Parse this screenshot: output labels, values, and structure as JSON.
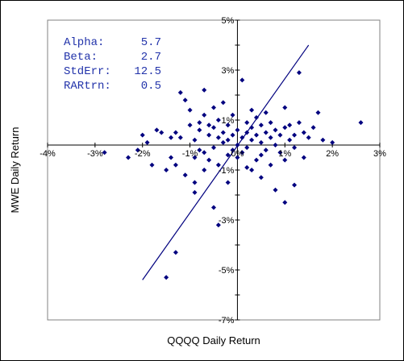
{
  "chart_data": {
    "type": "scatter",
    "xlabel": "QQQQ Daily Return",
    "ylabel": "MWE Daily Return",
    "xlim": [
      -4,
      3
    ],
    "ylim": [
      -7,
      5
    ],
    "x_ticks": [
      "-4%",
      "-3%",
      "-2%",
      "-1%",
      "0%",
      "1%",
      "2%",
      "3%"
    ],
    "y_ticks": [
      "5%",
      "3%",
      "1%",
      "-1%",
      "-3%",
      "-5%",
      "-7%"
    ],
    "colors": {
      "points": "#00007f",
      "line": "#00007f",
      "stats_text": "#2233aa"
    },
    "stats": [
      {
        "label": "Alpha:",
        "value": "5.7"
      },
      {
        "label": "Beta:",
        "value": "2.7"
      },
      {
        "label": "StdErr:",
        "value": "12.5"
      },
      {
        "label": "RARtrn:",
        "value": "0.5"
      }
    ],
    "regression_line": {
      "x": [
        -2.0,
        1.5
      ],
      "y": [
        -5.4,
        4.0
      ]
    },
    "points": [
      [
        -2.8,
        -0.3
      ],
      [
        -2.3,
        -0.5
      ],
      [
        -2.1,
        -0.2
      ],
      [
        -2.0,
        0.4
      ],
      [
        -1.9,
        0.1
      ],
      [
        -1.8,
        -0.8
      ],
      [
        -1.7,
        0.6
      ],
      [
        -1.6,
        0.5
      ],
      [
        -1.5,
        -1.0
      ],
      [
        -1.4,
        0.3
      ],
      [
        -1.4,
        -0.5
      ],
      [
        -1.3,
        -0.8
      ],
      [
        -1.3,
        0.5
      ],
      [
        -1.2,
        0.3
      ],
      [
        -1.2,
        2.1
      ],
      [
        -1.1,
        1.8
      ],
      [
        -1.1,
        -1.2
      ],
      [
        -1.0,
        1.4
      ],
      [
        -1.0,
        0.8
      ],
      [
        -0.9,
        0.2
      ],
      [
        -0.9,
        -0.5
      ],
      [
        -0.9,
        -1.5
      ],
      [
        -0.8,
        0.9
      ],
      [
        -0.8,
        0.6
      ],
      [
        -0.8,
        -0.2
      ],
      [
        -0.7,
        1.2
      ],
      [
        -0.7,
        2.2
      ],
      [
        -0.7,
        -0.3
      ],
      [
        -0.6,
        0.8
      ],
      [
        -0.6,
        -0.6
      ],
      [
        -0.6,
        0.4
      ],
      [
        -0.5,
        1.5
      ],
      [
        -0.5,
        0.7
      ],
      [
        -0.5,
        -0.1
      ],
      [
        -0.4,
        0.3
      ],
      [
        -0.4,
        1.0
      ],
      [
        -0.4,
        -0.8
      ],
      [
        -0.3,
        0.5
      ],
      [
        -0.3,
        0.1
      ],
      [
        -0.3,
        1.7
      ],
      [
        -0.2,
        0.2
      ],
      [
        -0.2,
        -0.4
      ],
      [
        -0.2,
        0.8
      ],
      [
        -0.1,
        0.4
      ],
      [
        -0.1,
        1.2
      ],
      [
        -0.1,
        -0.2
      ],
      [
        0.0,
        0.6
      ],
      [
        0.0,
        0.0
      ],
      [
        0.0,
        -0.5
      ],
      [
        0.1,
        0.3
      ],
      [
        0.1,
        2.6
      ],
      [
        0.1,
        -0.3
      ],
      [
        0.2,
        0.9
      ],
      [
        0.2,
        0.5
      ],
      [
        0.2,
        -0.1
      ],
      [
        0.3,
        0.7
      ],
      [
        0.3,
        1.4
      ],
      [
        0.3,
        0.2
      ],
      [
        0.4,
        0.4
      ],
      [
        0.4,
        -0.6
      ],
      [
        0.4,
        1.1
      ],
      [
        0.5,
        0.8
      ],
      [
        0.5,
        0.1
      ],
      [
        0.5,
        -0.4
      ],
      [
        0.6,
        0.5
      ],
      [
        0.6,
        1.3
      ],
      [
        0.6,
        -0.2
      ],
      [
        0.7,
        0.3
      ],
      [
        0.7,
        0.9
      ],
      [
        0.7,
        -0.8
      ],
      [
        0.8,
        0.6
      ],
      [
        0.8,
        0.0
      ],
      [
        0.9,
        0.4
      ],
      [
        0.9,
        -0.3
      ],
      [
        1.0,
        0.7
      ],
      [
        1.0,
        1.5
      ],
      [
        1.0,
        -0.6
      ],
      [
        1.1,
        0.2
      ],
      [
        1.1,
        0.8
      ],
      [
        1.2,
        0.4
      ],
      [
        1.2,
        -0.1
      ],
      [
        1.3,
        0.9
      ],
      [
        1.3,
        2.9
      ],
      [
        1.4,
        0.5
      ],
      [
        1.4,
        -0.5
      ],
      [
        1.5,
        0.3
      ],
      [
        1.6,
        0.7
      ],
      [
        1.7,
        1.3
      ],
      [
        1.8,
        0.2
      ],
      [
        2.0,
        0.1
      ],
      [
        2.6,
        0.9
      ],
      [
        -1.5,
        -5.3
      ],
      [
        -0.9,
        -1.9
      ],
      [
        -0.5,
        -2.5
      ],
      [
        -0.4,
        -3.2
      ],
      [
        -0.2,
        -1.5
      ],
      [
        0.3,
        -1.0
      ],
      [
        0.5,
        -1.3
      ],
      [
        0.8,
        -1.8
      ],
      [
        1.0,
        -2.3
      ],
      [
        1.2,
        -1.6
      ],
      [
        -1.3,
        -4.3
      ],
      [
        -0.7,
        -1.0
      ],
      [
        0.2,
        -0.9
      ]
    ]
  }
}
